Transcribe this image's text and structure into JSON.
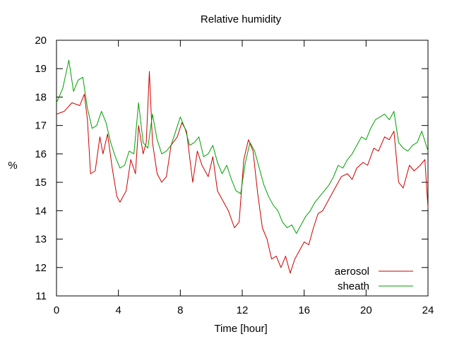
{
  "chart_data": {
    "type": "line",
    "title": "Relative humidity",
    "xlabel": "Time [hour]",
    "ylabel": "%",
    "xlim": [
      0,
      24
    ],
    "ylim": [
      11,
      20
    ],
    "xticks": [
      0,
      4,
      8,
      12,
      16,
      20,
      24
    ],
    "yticks": [
      11,
      12,
      13,
      14,
      15,
      16,
      17,
      18,
      19,
      20
    ],
    "grid": false,
    "legend_position": "bottom-right",
    "series": [
      {
        "name": "aerosol",
        "color": "#cc0000",
        "x": [
          0,
          0.5,
          1,
          1.5,
          1.8,
          2,
          2.2,
          2.5,
          2.8,
          3,
          3.3,
          3.6,
          3.9,
          4.1,
          4.5,
          4.8,
          5.1,
          5.3,
          5.6,
          5.8,
          6,
          6.2,
          6.5,
          6.8,
          7.1,
          7.4,
          7.8,
          8.1,
          8.4,
          8.8,
          9.1,
          9.4,
          9.8,
          10.1,
          10.4,
          10.8,
          11.1,
          11.5,
          11.8,
          12.1,
          12.4,
          12.7,
          13,
          13.3,
          13.6,
          13.9,
          14.2,
          14.5,
          14.8,
          15.1,
          15.4,
          15.7,
          16,
          16.3,
          16.6,
          16.9,
          17.2,
          17.5,
          17.8,
          18.1,
          18.4,
          18.8,
          19.1,
          19.4,
          19.8,
          20.1,
          20.5,
          20.8,
          21.2,
          21.5,
          21.8,
          22.1,
          22.4,
          22.8,
          23.1,
          23.5,
          23.8,
          24
        ],
        "y": [
          17.4,
          17.5,
          17.8,
          17.7,
          18.1,
          17.2,
          15.3,
          15.4,
          16.6,
          16.0,
          16.7,
          15.5,
          14.5,
          14.3,
          14.7,
          15.8,
          15.3,
          17.0,
          16.0,
          16.4,
          18.9,
          16.4,
          15.3,
          15.0,
          15.2,
          16.3,
          16.6,
          17.1,
          16.8,
          15.0,
          16.1,
          15.6,
          15.2,
          15.9,
          14.7,
          14.3,
          14.0,
          13.4,
          13.6,
          15.8,
          16.5,
          16.1,
          14.6,
          13.4,
          13.0,
          12.3,
          12.4,
          12.0,
          12.4,
          11.8,
          12.3,
          12.6,
          12.9,
          12.8,
          13.4,
          13.9,
          14.0,
          14.3,
          14.6,
          14.9,
          15.2,
          15.3,
          15.1,
          15.5,
          15.7,
          15.6,
          16.2,
          16.1,
          16.6,
          16.5,
          16.8,
          15.0,
          14.8,
          15.6,
          15.4,
          15.6,
          15.8,
          14.1
        ]
      },
      {
        "name": "sheath",
        "color": "#00a000",
        "x": [
          0,
          0.4,
          0.8,
          1.1,
          1.4,
          1.7,
          2,
          2.3,
          2.6,
          2.9,
          3.2,
          3.5,
          3.8,
          4.1,
          4.4,
          4.7,
          5,
          5.3,
          5.6,
          5.9,
          6.2,
          6.5,
          6.8,
          7.1,
          7.4,
          7.7,
          8,
          8.3,
          8.6,
          8.9,
          9.2,
          9.5,
          9.8,
          10.1,
          10.4,
          10.7,
          11,
          11.3,
          11.6,
          11.9,
          12.2,
          12.5,
          12.8,
          13.1,
          13.4,
          13.7,
          14,
          14.3,
          14.6,
          14.9,
          15.2,
          15.5,
          15.8,
          16.1,
          16.4,
          16.7,
          17,
          17.3,
          17.6,
          17.9,
          18.2,
          18.5,
          18.8,
          19.1,
          19.4,
          19.7,
          20,
          20.3,
          20.6,
          20.9,
          21.2,
          21.5,
          21.8,
          22.1,
          22.4,
          22.7,
          23,
          23.3,
          23.6,
          24
        ],
        "y": [
          17.8,
          18.3,
          19.3,
          18.2,
          18.6,
          18.7,
          17.6,
          16.9,
          17.0,
          17.5,
          17.1,
          16.4,
          15.9,
          15.5,
          15.6,
          16.1,
          16.0,
          17.8,
          16.4,
          16.2,
          17.4,
          16.5,
          16.0,
          16.1,
          16.3,
          16.8,
          17.3,
          16.9,
          16.3,
          16.4,
          16.6,
          15.9,
          16.0,
          16.3,
          15.7,
          15.3,
          15.6,
          15.1,
          14.7,
          14.6,
          15.7,
          16.4,
          16.1,
          15.5,
          14.9,
          14.5,
          14.2,
          14.0,
          13.6,
          13.4,
          13.5,
          13.2,
          13.5,
          13.8,
          14.0,
          14.3,
          14.5,
          14.7,
          14.9,
          15.2,
          15.6,
          15.5,
          15.8,
          16.0,
          16.3,
          16.6,
          16.5,
          16.9,
          17.2,
          17.3,
          17.4,
          17.2,
          17.5,
          16.4,
          16.2,
          16.1,
          16.3,
          16.4,
          16.8,
          16.1
        ]
      }
    ]
  }
}
